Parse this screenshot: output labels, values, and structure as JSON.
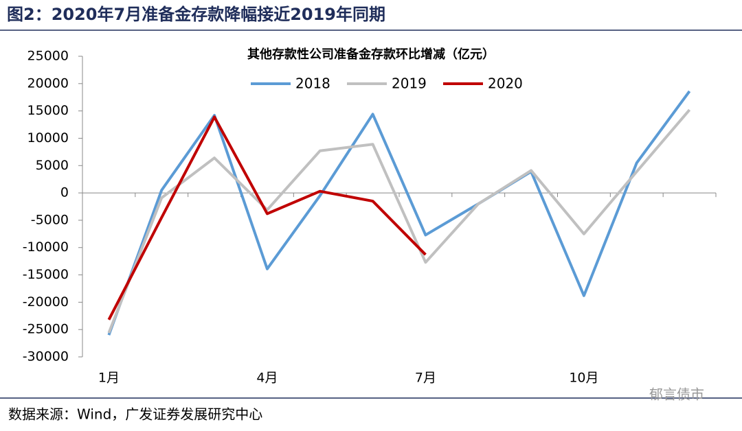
{
  "heading": "图2：2020年7月准备金存款降幅接近2019年同期",
  "source": "数据来源：Wind，广发证券发展研究中心",
  "watermark": "郁言债市",
  "chart_data": {
    "type": "line",
    "title": "其他存款性公司准备金存款环比增减（亿元）",
    "categories": [
      "1月",
      null,
      null,
      "4月",
      null,
      null,
      "7月",
      null,
      null,
      "10月",
      null,
      null
    ],
    "series": [
      {
        "name": "2018",
        "color": "#5b9bd5",
        "values": [
          -26000,
          500,
          14200,
          -13900,
          -500,
          14400,
          -7700,
          -2000,
          3900,
          -18800,
          5500,
          18600
        ]
      },
      {
        "name": "2019",
        "color": "#c0c0c0",
        "values": [
          -25600,
          -900,
          6400,
          -3100,
          7700,
          8900,
          -12700,
          -2000,
          4100,
          -7500,
          3900,
          15200
        ]
      },
      {
        "name": "2020",
        "color": "#c00000",
        "values": [
          -23200,
          -4500,
          13900,
          -3800,
          300,
          -1500,
          -11300,
          null,
          null,
          null,
          null,
          null
        ]
      }
    ],
    "ylim": [
      -30000,
      25000
    ],
    "yticks": [
      -30000,
      -25000,
      -20000,
      -15000,
      -10000,
      -5000,
      0,
      5000,
      10000,
      15000,
      20000,
      25000
    ],
    "legend": "top"
  }
}
